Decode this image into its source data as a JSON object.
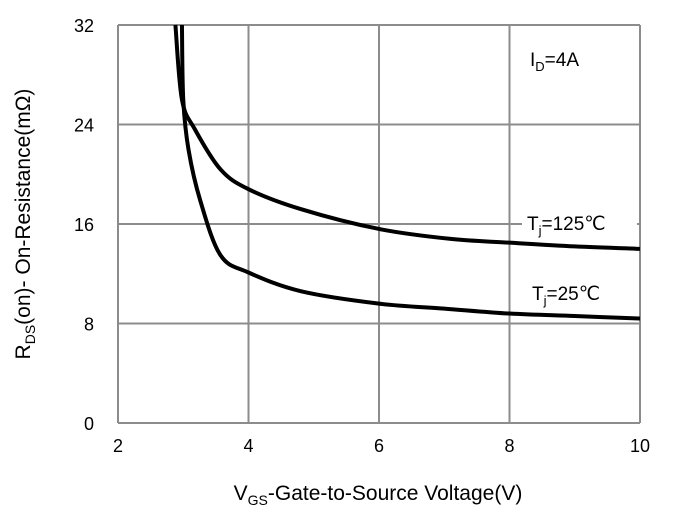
{
  "chart_data": {
    "type": "line",
    "title": "",
    "xlabel": {
      "main": "V",
      "sub": "GS",
      "rest": "-Gate-to-Source  Voltage(V)"
    },
    "ylabel": {
      "main": "R",
      "sub": "DS",
      "rest": "(on)- On-Resistance(mΩ)"
    },
    "xlim": [
      2,
      10
    ],
    "ylim": [
      0,
      32
    ],
    "xticks": [
      2,
      4,
      6,
      8,
      10
    ],
    "yticks": [
      0,
      8,
      16,
      24,
      32
    ],
    "grid": true,
    "annotations": [
      {
        "main": "I",
        "sub": "D",
        "rest": "=4A"
      }
    ],
    "series": [
      {
        "name": "Tj=125℃",
        "label": {
          "main": "T",
          "sub": "j",
          "rest": "=125℃"
        },
        "color": "#000000",
        "x": [
          2.88,
          2.98,
          3.18,
          3.57,
          4.0,
          4.8,
          6.0,
          7.1,
          8.0,
          9.0,
          10.0
        ],
        "y": [
          32,
          26,
          23.6,
          20.4,
          18.8,
          17.2,
          15.6,
          14.8,
          14.5,
          14.2,
          14.0
        ]
      },
      {
        "name": "Tj=25℃",
        "label": {
          "main": "T",
          "sub": "j",
          "rest": "=25℃"
        },
        "color": "#000000",
        "x": [
          2.98,
          3.0,
          3.08,
          3.26,
          3.57,
          4.0,
          4.8,
          6.0,
          7.0,
          8.0,
          9.0,
          10.0
        ],
        "y": [
          32,
          26,
          22,
          17.9,
          13.5,
          12.1,
          10.6,
          9.6,
          9.2,
          8.8,
          8.6,
          8.4
        ]
      }
    ]
  }
}
